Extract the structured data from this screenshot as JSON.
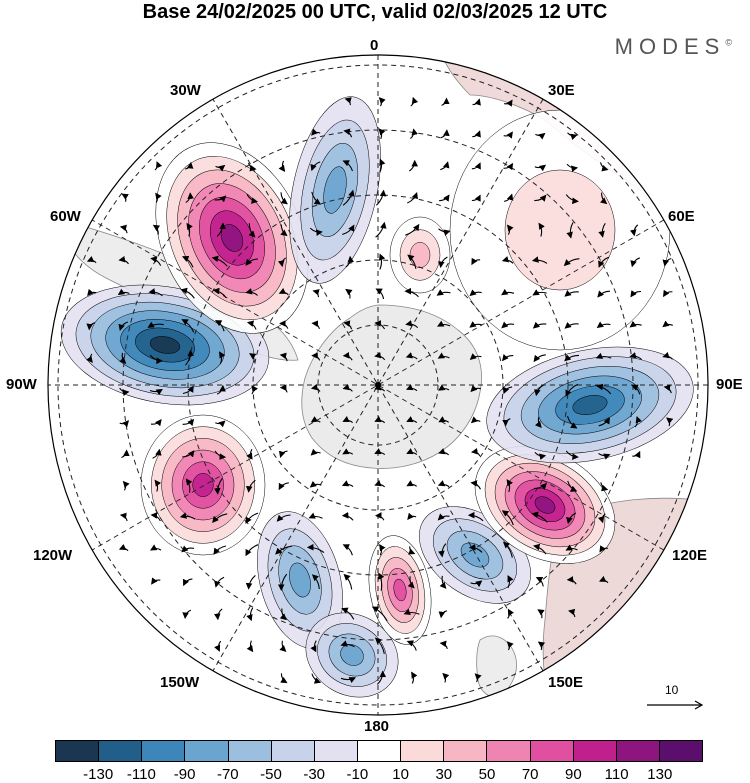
{
  "title": "Base 24/02/2025 00 UTC, valid 02/03/2025 12 UTC",
  "brand": "MODES",
  "brand_mark": "©",
  "longitude_labels": {
    "lon_0": "0",
    "lon_30e": "30E",
    "lon_60e": "60E",
    "lon_90e": "90E",
    "lon_120e": "120E",
    "lon_150e": "150E",
    "lon_180": "180",
    "lon_150w": "150W",
    "lon_120w": "120W",
    "lon_90w": "90W",
    "lon_60w": "60W",
    "lon_30w": "30W"
  },
  "reference_vector": {
    "label": "10",
    "icon": "reference-arrow-icon"
  },
  "colorbar": {
    "tick_labels": [
      "-130",
      "-110",
      "-90",
      "-70",
      "-50",
      "-30",
      "-10",
      "10",
      "30",
      "50",
      "70",
      "90",
      "110",
      "130"
    ],
    "colors": [
      "#1a3650",
      "#215f8a",
      "#3d86b9",
      "#6aa5d0",
      "#9cbfe0",
      "#c6d3ea",
      "#e3e1f1",
      "#ffffff",
      "#fbdada",
      "#f7b6c4",
      "#ef83b2",
      "#e04fa0",
      "#c01f8e",
      "#8e147f",
      "#5b0e6c"
    ]
  },
  "map_features": {
    "projection": "south-polar-stereographic",
    "center": "South Pole",
    "land_color": "#ebebeb",
    "graticule": "dashed",
    "anomalies": [
      {
        "name": "low-90w",
        "sign": "negative",
        "peak": -140
      },
      {
        "name": "high-45w",
        "sign": "positive",
        "peak": 130
      },
      {
        "name": "low-15w",
        "sign": "negative",
        "peak": -70
      },
      {
        "name": "high-115w",
        "sign": "positive",
        "peak": 110
      },
      {
        "name": "low-150w",
        "sign": "negative",
        "peak": -70
      },
      {
        "name": "low-170w",
        "sign": "negative",
        "peak": -80
      },
      {
        "name": "high-165e",
        "sign": "positive",
        "peak": 90
      },
      {
        "name": "low-145e",
        "sign": "negative",
        "peak": -80
      },
      {
        "name": "high-115e",
        "sign": "positive",
        "peak": 130
      },
      {
        "name": "low-90e",
        "sign": "negative",
        "peak": -110
      },
      {
        "name": "high-30e-50e",
        "sign": "positive",
        "peak": 30
      },
      {
        "name": "high-10e",
        "sign": "positive",
        "peak": 50
      }
    ]
  }
}
